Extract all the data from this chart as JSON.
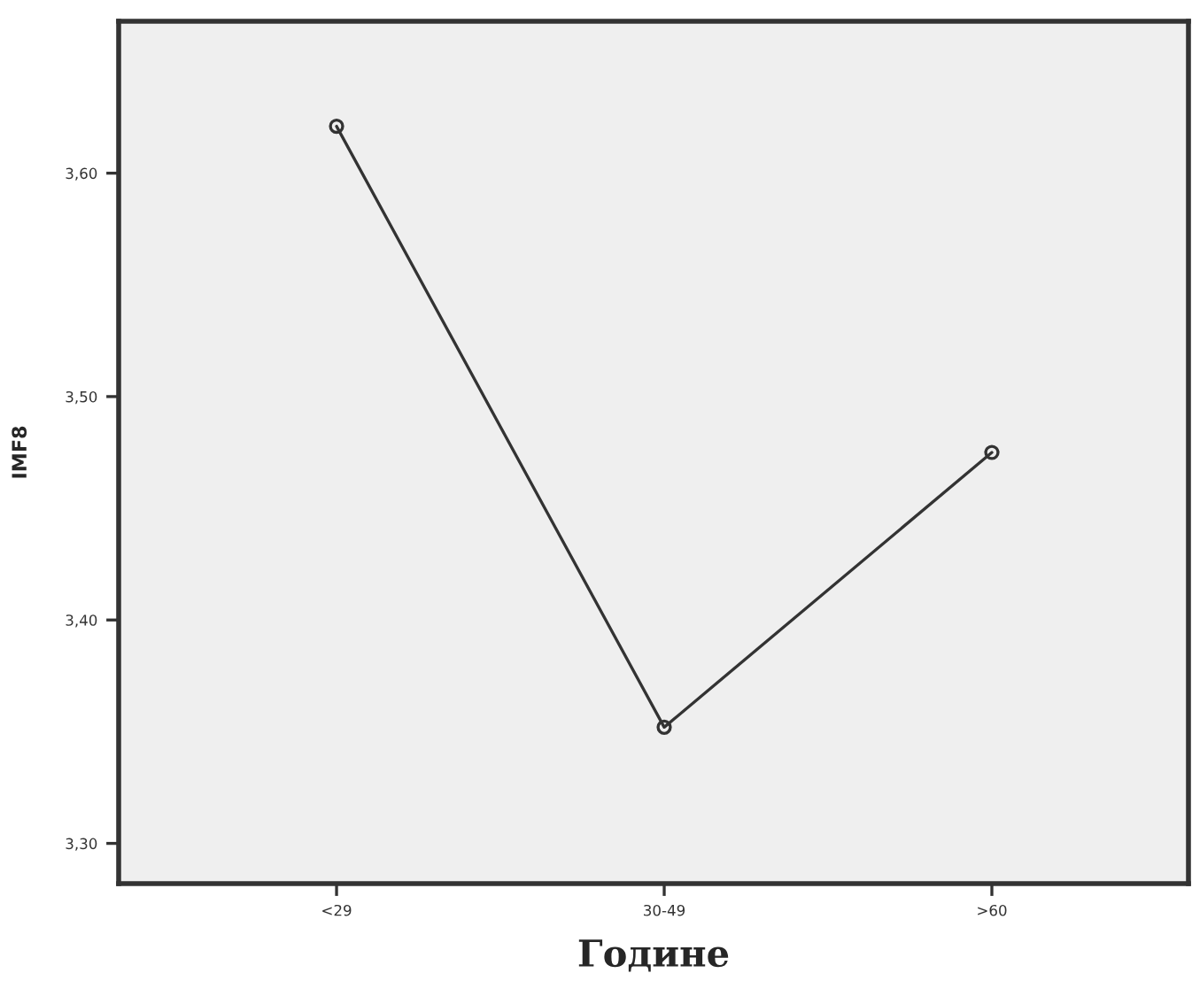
{
  "chart_data": {
    "type": "line",
    "xlabel": "Године",
    "ylabel": "IMF8",
    "categories": [
      "<29",
      "30-49",
      ">60"
    ],
    "series": [
      {
        "color": "#333333",
        "values": [
          3.621,
          3.352,
          3.475
        ]
      }
    ],
    "ylim": [
      3.282,
      3.668
    ],
    "yticks": [
      {
        "value": 3.3,
        "label": "3,30"
      },
      {
        "value": 3.4,
        "label": "3,40"
      },
      {
        "value": 3.5,
        "label": "3,50"
      },
      {
        "value": 3.6,
        "label": "3,60"
      }
    ],
    "marker": "circle",
    "line_style": "solid",
    "grid": false,
    "legend": false
  }
}
